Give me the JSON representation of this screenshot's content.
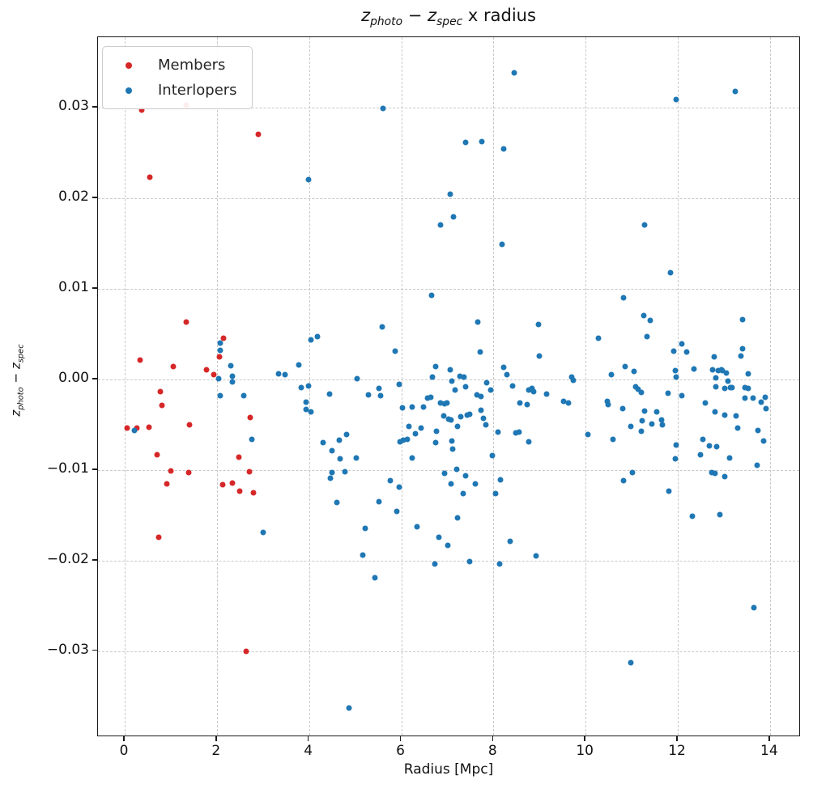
{
  "title": {
    "var1": "z",
    "sub1": "photo",
    "op": " − ",
    "var2": "z",
    "sub2": "spec",
    "suffix": " x radius"
  },
  "axes": {
    "xlabel": "Radius [Mpc]",
    "ylabel": {
      "var1": "z",
      "sub1": "photo",
      "op": " − ",
      "var2": "z",
      "sub2": "spec"
    }
  },
  "legend": {
    "position": "upper left"
  },
  "chart_data": {
    "type": "scatter",
    "title": "z_photo − z_spec x radius",
    "xlabel": "Radius [Mpc]",
    "ylabel": "z_photo − z_spec",
    "grid": true,
    "legend_position": "upper left",
    "xlim": [
      -0.58,
      14.67
    ],
    "ylim": [
      -0.0395,
      0.0378
    ],
    "x_ticks": {
      "values": [
        0,
        2,
        4,
        6,
        8,
        10,
        12,
        14
      ],
      "labels": [
        "0",
        "2",
        "4",
        "6",
        "8",
        "10",
        "12",
        "14"
      ]
    },
    "y_ticks": {
      "values": [
        0.03,
        0.02,
        0.01,
        0.0,
        -0.01,
        -0.02,
        -0.03
      ],
      "labels": [
        "0.03",
        "0.02",
        "0.01",
        "0.00",
        "−0.01",
        "−0.02",
        "−0.03"
      ]
    },
    "series": [
      {
        "name": "Members",
        "color": "#d62728",
        "points": [
          [
            0.37,
            0.0298
          ],
          [
            1.33,
            0.0303
          ],
          [
            2.9,
            0.0271
          ],
          [
            0.54,
            0.0223
          ],
          [
            1.33,
            0.0063
          ],
          [
            2.15,
            0.0046
          ],
          [
            2.06,
            0.0025
          ],
          [
            0.33,
            0.0021
          ],
          [
            1.05,
            0.0014
          ],
          [
            1.77,
            0.0011
          ],
          [
            1.94,
            0.0005
          ],
          [
            0.77,
            -0.0013
          ],
          [
            0.8,
            -0.0029
          ],
          [
            2.73,
            -0.0042
          ],
          [
            1.4,
            -0.005
          ],
          [
            0.05,
            -0.0054
          ],
          [
            0.26,
            -0.0054
          ],
          [
            0.52,
            -0.0053
          ],
          [
            0.7,
            -0.0083
          ],
          [
            2.48,
            -0.0086
          ],
          [
            1.01,
            -0.0101
          ],
          [
            1.38,
            -0.0103
          ],
          [
            2.71,
            -0.0102
          ],
          [
            0.91,
            -0.0115
          ],
          [
            2.12,
            -0.0116
          ],
          [
            2.33,
            -0.0114
          ],
          [
            2.5,
            -0.0123
          ],
          [
            2.8,
            -0.0125
          ],
          [
            0.73,
            -0.0174
          ],
          [
            2.64,
            -0.03
          ]
        ]
      },
      {
        "name": "Interlopers",
        "color": "#1f77b4",
        "points": [
          [
            0.21,
            -0.0056
          ],
          [
            2.03,
            0.0001
          ],
          [
            2.08,
            0.004
          ],
          [
            2.08,
            0.0032
          ],
          [
            2.31,
            0.0015
          ],
          [
            2.33,
            0.0004
          ],
          [
            2.33,
            -0.0003
          ],
          [
            2.08,
            -0.0018
          ],
          [
            2.59,
            -0.0018
          ],
          [
            2.76,
            -0.0066
          ],
          [
            3.01,
            -0.0169
          ],
          [
            3.34,
            0.0006
          ],
          [
            3.48,
            0.0005
          ],
          [
            3.78,
            0.0016
          ],
          [
            3.83,
            -0.0009
          ],
          [
            3.93,
            -0.0025
          ],
          [
            3.93,
            -0.0033
          ],
          [
            3.99,
            0.0221
          ],
          [
            3.99,
            -0.0007
          ],
          [
            4.04,
            0.0044
          ],
          [
            4.04,
            -0.0036
          ],
          [
            4.18,
            0.0047
          ],
          [
            4.3,
            -0.007
          ],
          [
            4.44,
            -0.0016
          ],
          [
            4.46,
            -0.0109
          ],
          [
            4.49,
            -0.0079
          ],
          [
            4.49,
            -0.0103
          ],
          [
            4.6,
            -0.0136
          ],
          [
            4.65,
            -0.0067
          ],
          [
            4.67,
            -0.0088
          ],
          [
            4.77,
            -0.0102
          ],
          [
            4.81,
            -0.0061
          ],
          [
            4.86,
            -0.0363
          ],
          [
            5.03,
            -0.0087
          ],
          [
            5.05,
            0.0001
          ],
          [
            5.17,
            -0.0194
          ],
          [
            5.21,
            -0.0164
          ],
          [
            5.28,
            -0.0017
          ],
          [
            5.42,
            -0.0219
          ],
          [
            5.51,
            -0.001
          ],
          [
            5.51,
            -0.0135
          ],
          [
            5.56,
            -0.0018
          ],
          [
            5.59,
            0.0058
          ],
          [
            5.61,
            0.0299
          ],
          [
            5.77,
            -0.0112
          ],
          [
            5.87,
            0.0031
          ],
          [
            5.91,
            -0.0146
          ],
          [
            5.96,
            -0.0005
          ],
          [
            5.96,
            -0.0119
          ],
          [
            5.98,
            -0.0069
          ],
          [
            6.03,
            -0.0031
          ],
          [
            6.05,
            -0.0067
          ],
          [
            6.14,
            -0.0066
          ],
          [
            6.17,
            -0.0052
          ],
          [
            6.24,
            -0.003
          ],
          [
            6.24,
            -0.0087
          ],
          [
            6.31,
            -0.006
          ],
          [
            6.35,
            -0.0163
          ],
          [
            6.43,
            -0.0054
          ],
          [
            6.49,
            -0.003
          ],
          [
            6.57,
            -0.0021
          ],
          [
            6.64,
            -0.002
          ],
          [
            6.66,
            0.0093
          ],
          [
            6.68,
            0.0003
          ],
          [
            6.73,
            -0.0204
          ],
          [
            6.75,
            0.0014
          ],
          [
            6.75,
            -0.007
          ],
          [
            6.77,
            -0.0057
          ],
          [
            6.82,
            -0.0174
          ],
          [
            6.85,
            0.0171
          ],
          [
            6.85,
            -0.0026
          ],
          [
            6.92,
            -0.004
          ],
          [
            6.94,
            -0.0027
          ],
          [
            6.94,
            -0.0104
          ],
          [
            6.99,
            -0.0026
          ],
          [
            7.01,
            -0.0183
          ],
          [
            7.03,
            -0.0044
          ],
          [
            7.06,
            0.0205
          ],
          [
            7.06,
            0.0011
          ],
          [
            7.08,
            -0.0045
          ],
          [
            7.08,
            -0.0115
          ],
          [
            7.1,
            -0.0002
          ],
          [
            7.1,
            -0.0068
          ],
          [
            7.12,
            -0.0077
          ],
          [
            7.13,
            0.018
          ],
          [
            7.17,
            -0.0012
          ],
          [
            7.2,
            -0.0099
          ],
          [
            7.22,
            -0.0052
          ],
          [
            7.22,
            -0.0153
          ],
          [
            7.27,
            0.0004
          ],
          [
            7.29,
            -0.0041
          ],
          [
            7.34,
            -0.0126
          ],
          [
            7.36,
            0.0003
          ],
          [
            7.39,
            0.0262
          ],
          [
            7.39,
            -0.0008
          ],
          [
            7.39,
            -0.0106
          ],
          [
            7.43,
            -0.0039
          ],
          [
            7.48,
            -0.0038
          ],
          [
            7.48,
            -0.0201
          ],
          [
            7.6,
            -0.0115
          ],
          [
            7.64,
            -0.0017
          ],
          [
            7.66,
            0.0063
          ],
          [
            7.71,
            0.003
          ],
          [
            7.73,
            -0.0019
          ],
          [
            7.73,
            -0.0034
          ],
          [
            7.74,
            0.0263
          ],
          [
            7.78,
            -0.0043
          ],
          [
            7.83,
            -0.005
          ],
          [
            7.86,
            -0.0004
          ],
          [
            7.94,
            -0.0012
          ],
          [
            7.97,
            -0.0084
          ],
          [
            8.04,
            -0.0126
          ],
          [
            8.1,
            -0.0058
          ],
          [
            8.13,
            -0.0204
          ],
          [
            8.15,
            -0.0111
          ],
          [
            8.18,
            0.0149
          ],
          [
            8.22,
            0.0013
          ],
          [
            8.23,
            0.0255
          ],
          [
            8.3,
            0.0005
          ],
          [
            8.37,
            -0.0179
          ],
          [
            8.41,
            -0.0007
          ],
          [
            8.45,
            0.0339
          ],
          [
            8.48,
            -0.0059
          ],
          [
            8.55,
            -0.0058
          ],
          [
            8.57,
            -0.0026
          ],
          [
            8.74,
            -0.0028
          ],
          [
            8.76,
            -0.0069
          ],
          [
            8.77,
            -0.0012
          ],
          [
            8.83,
            -0.001
          ],
          [
            8.88,
            -0.0013
          ],
          [
            8.92,
            -0.0195
          ],
          [
            8.97,
            0.0061
          ],
          [
            9.0,
            0.0026
          ],
          [
            9.16,
            -0.0016
          ],
          [
            9.53,
            -0.0024
          ],
          [
            9.62,
            -0.0026
          ],
          [
            9.7,
            0.0003
          ],
          [
            9.74,
            -0.0001
          ],
          [
            10.05,
            -0.0061
          ],
          [
            10.28,
            0.0046
          ],
          [
            10.47,
            -0.0024
          ],
          [
            10.49,
            -0.0028
          ],
          [
            10.56,
            0.0005
          ],
          [
            10.59,
            -0.0066
          ],
          [
            10.8,
            -0.0032
          ],
          [
            10.82,
            0.009
          ],
          [
            10.82,
            -0.0112
          ],
          [
            10.86,
            0.0014
          ],
          [
            10.98,
            -0.0052
          ],
          [
            10.98,
            -0.0313
          ],
          [
            11.01,
            -0.0103
          ],
          [
            11.05,
            0.0009
          ],
          [
            11.08,
            -0.0008
          ],
          [
            11.13,
            -0.0011
          ],
          [
            11.21,
            -0.0014
          ],
          [
            11.21,
            -0.0057
          ],
          [
            11.22,
            -0.0046
          ],
          [
            11.26,
            0.0071
          ],
          [
            11.28,
            0.0171
          ],
          [
            11.28,
            -0.0035
          ],
          [
            11.33,
            0.0047
          ],
          [
            11.4,
            0.0065
          ],
          [
            11.43,
            -0.0049
          ],
          [
            11.54,
            -0.0036
          ],
          [
            11.64,
            -0.0045
          ],
          [
            11.66,
            -0.005
          ],
          [
            11.78,
            -0.0015
          ],
          [
            11.8,
            -0.0123
          ],
          [
            11.84,
            0.0118
          ],
          [
            11.92,
            0.0031
          ],
          [
            11.94,
            0.001
          ],
          [
            11.95,
            -0.0088
          ],
          [
            11.96,
            0.0309
          ],
          [
            11.96,
            0.0003
          ],
          [
            11.96,
            -0.0072
          ],
          [
            12.08,
            0.0039
          ],
          [
            12.08,
            -0.0018
          ],
          [
            12.19,
            0.003
          ],
          [
            12.31,
            -0.0151
          ],
          [
            12.35,
            0.0012
          ],
          [
            12.5,
            -0.0083
          ],
          [
            12.55,
            -0.0066
          ],
          [
            12.59,
            -0.0026
          ],
          [
            12.69,
            -0.0073
          ],
          [
            12.74,
            -0.0103
          ],
          [
            12.76,
            0.0011
          ],
          [
            12.79,
            0.0025
          ],
          [
            12.8,
            -0.0036
          ],
          [
            12.81,
            -0.0104
          ],
          [
            12.82,
            0.0002
          ],
          [
            12.83,
            -0.0008
          ],
          [
            12.85,
            -0.0074
          ],
          [
            12.87,
            0.001
          ],
          [
            12.92,
            -0.0149
          ],
          [
            12.94,
            0.0011
          ],
          [
            12.97,
            0.001
          ],
          [
            13.01,
            -0.001
          ],
          [
            13.01,
            -0.0039
          ],
          [
            13.01,
            -0.0107
          ],
          [
            13.06,
            0.0007
          ],
          [
            13.08,
            -0.0002
          ],
          [
            13.13,
            -0.0087
          ],
          [
            13.15,
            -0.0009
          ],
          [
            13.18,
            -0.0009
          ],
          [
            13.24,
            0.0318
          ],
          [
            13.27,
            -0.004
          ],
          [
            13.3,
            -0.0054
          ],
          [
            13.37,
            0.0026
          ],
          [
            13.4,
            0.0034
          ],
          [
            13.41,
            0.0066
          ],
          [
            13.46,
            -0.0009
          ],
          [
            13.46,
            -0.0021
          ],
          [
            13.52,
            -0.001
          ],
          [
            13.53,
            0.0006
          ],
          [
            13.64,
            -0.0021
          ],
          [
            13.65,
            -0.0252
          ],
          [
            13.72,
            -0.0095
          ],
          [
            13.74,
            -0.0056
          ],
          [
            13.81,
            -0.0025
          ],
          [
            13.86,
            -0.0068
          ],
          [
            13.9,
            -0.002
          ],
          [
            13.92,
            -0.0032
          ]
        ]
      }
    ]
  }
}
